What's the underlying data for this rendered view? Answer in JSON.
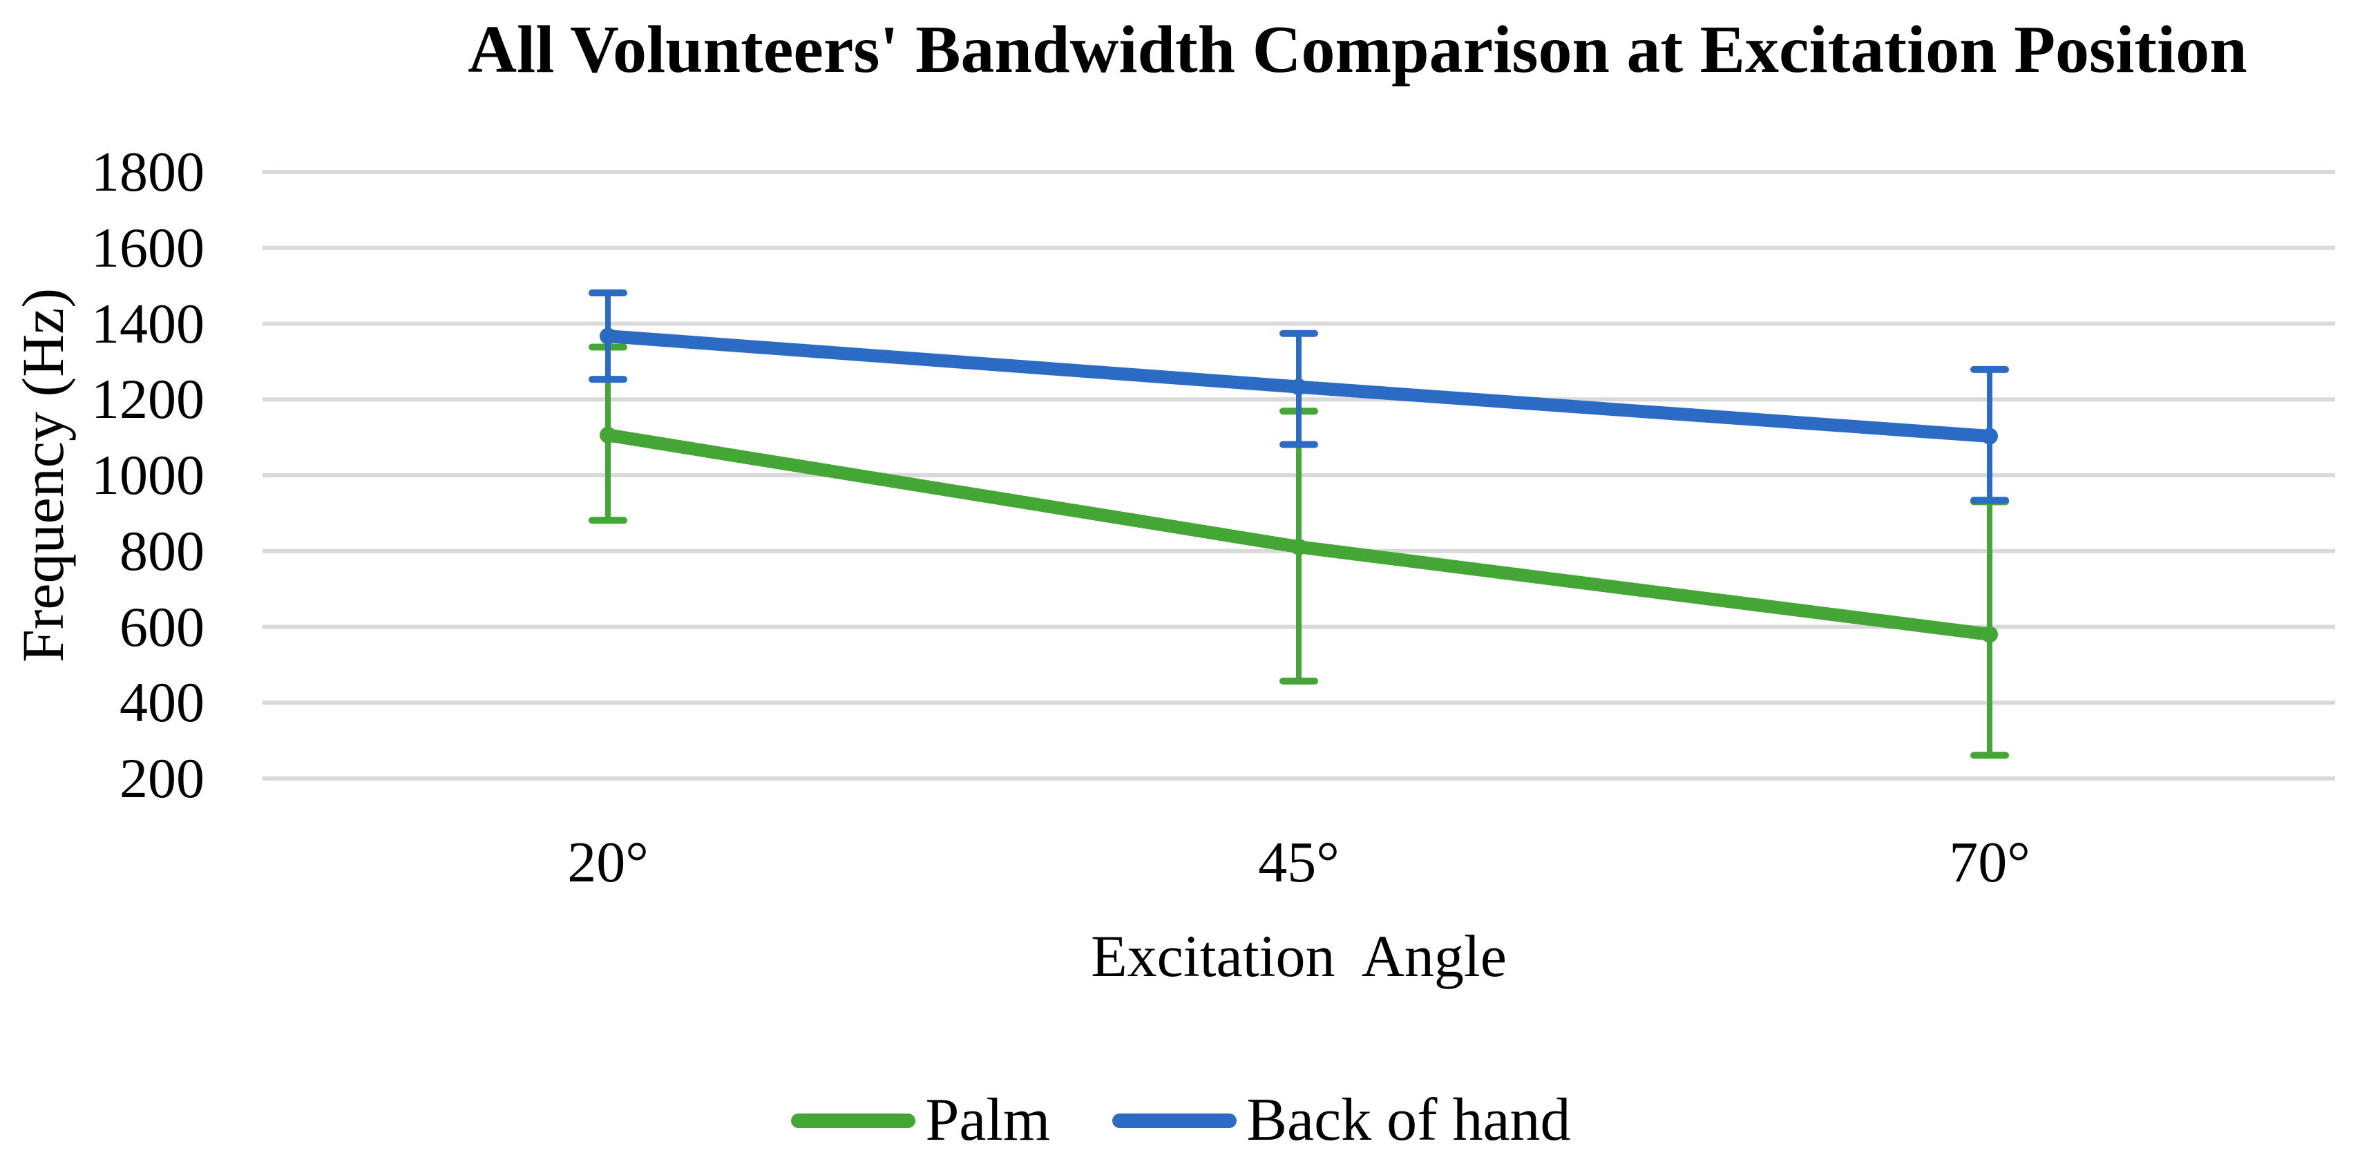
{
  "chart_data": {
    "type": "line",
    "title": "All Volunteers' Bandwidth Comparison at Excitation Position",
    "xlabel": "Excitation  Angle",
    "ylabel": "Frequency (Hz)",
    "categories": [
      "20°",
      "45°",
      "70°"
    ],
    "series": [
      {
        "name": "Palm",
        "color": "#44A735",
        "values": [
          1106,
          811,
          580
        ],
        "error_high": [
          1338,
          1169,
          930
        ],
        "error_low": [
          881,
          457,
          261
        ]
      },
      {
        "name": "Back of hand",
        "color": "#2B6BC4",
        "values": [
          1367,
          1233,
          1103
        ],
        "error_high": [
          1481,
          1374,
          1279
        ],
        "error_low": [
          1253,
          1081,
          934
        ]
      }
    ],
    "y_axis": {
      "min": 200,
      "max": 1800,
      "step": 200,
      "ticks": [
        1800,
        1600,
        1400,
        1200,
        1000,
        800,
        600,
        400,
        200
      ]
    },
    "grid": true,
    "gridline_color": "#D9D9D9",
    "text_color": "#000000",
    "background_color": "#FFFFFF",
    "legend_position": "bottom"
  }
}
